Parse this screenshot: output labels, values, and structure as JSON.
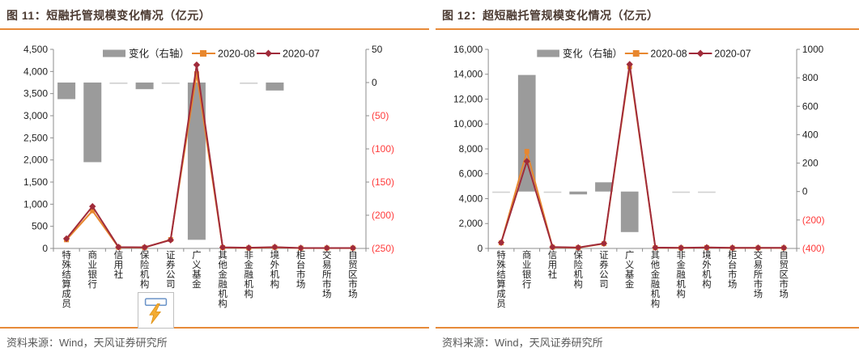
{
  "colors": {
    "title_text": "#4C3B32",
    "rule_orange": "#E78A39",
    "source_text": "#595959",
    "bar_gray": "#9B9B9B",
    "bar_gray_light": "#D0D0D0",
    "series_aug_orange": "#E8872E",
    "series_jul_red": "#A02B3A",
    "axis_line": "#8C8C8C",
    "axis_label": "#1F1F1F",
    "negative_label": "#FF3B3B"
  },
  "icons": {
    "flash_widget": "lightning-bolt-icon"
  },
  "chart_data": [
    {
      "type": "bar",
      "subtype": "combo-bar-line-dual-axis",
      "title": "图 11：短融托管规模变化情况（亿元）",
      "source": "资料来源：Wind，天风证券研究所",
      "legend_position": "top-center",
      "categories": [
        "特殊结算成员",
        "商业银行",
        "信用社",
        "保险机构",
        "证券公司",
        "广义基金",
        "其他金融机构",
        "非金融机构",
        "境外机构",
        "柜台市场",
        "交易所市场",
        "自贸区市场"
      ],
      "axes": {
        "left": {
          "min": 0,
          "max": 4500,
          "step": 500
        },
        "right": {
          "min": -250,
          "max": 50,
          "step": 50
        }
      },
      "series": [
        {
          "name": "变化（右轴）",
          "type": "bar",
          "axis": "right",
          "marker": "none",
          "values": [
            -25,
            -120,
            -2,
            -10,
            -2,
            -237,
            0,
            -2,
            -12,
            0,
            0,
            0
          ]
        },
        {
          "name": "2020-08",
          "type": "line",
          "axis": "left",
          "marker": "square",
          "values": [
            195,
            850,
            25,
            20,
            200,
            3950,
            20,
            10,
            25,
            8,
            8,
            8
          ]
        },
        {
          "name": "2020-07",
          "type": "line",
          "axis": "left",
          "marker": "diamond",
          "values": [
            220,
            950,
            30,
            25,
            190,
            4150,
            25,
            15,
            30,
            10,
            10,
            10
          ]
        }
      ]
    },
    {
      "type": "bar",
      "subtype": "combo-bar-line-dual-axis",
      "title": "图 12：超短融托管规模变化情况（亿元）",
      "source": "资料来源：Wind，天风证券研究所",
      "legend_position": "top-center",
      "categories": [
        "特殊结算成员",
        "商业银行",
        "信用社",
        "保险机构",
        "证券公司",
        "广义基金",
        "其他金融机构",
        "非金融机构",
        "境外机构",
        "柜台市场",
        "交易所市场",
        "自贸区市场"
      ],
      "axes": {
        "left": {
          "min": 0,
          "max": 16000,
          "step": 2000
        },
        "right": {
          "min": -400,
          "max": 1000,
          "step": 200
        }
      },
      "series": [
        {
          "name": "变化（右轴）",
          "type": "bar",
          "axis": "right",
          "marker": "none",
          "values": [
            -5,
            820,
            -3,
            -20,
            65,
            -285,
            0,
            -3,
            -3,
            0,
            0,
            0
          ]
        },
        {
          "name": "2020-08",
          "type": "line",
          "axis": "left",
          "marker": "square",
          "values": [
            450,
            7800,
            100,
            60,
            380,
            14600,
            60,
            40,
            70,
            40,
            40,
            40
          ]
        },
        {
          "name": "2020-07",
          "type": "line",
          "axis": "left",
          "marker": "diamond",
          "values": [
            470,
            7000,
            110,
            70,
            400,
            14800,
            70,
            50,
            80,
            50,
            50,
            50
          ]
        }
      ]
    }
  ]
}
